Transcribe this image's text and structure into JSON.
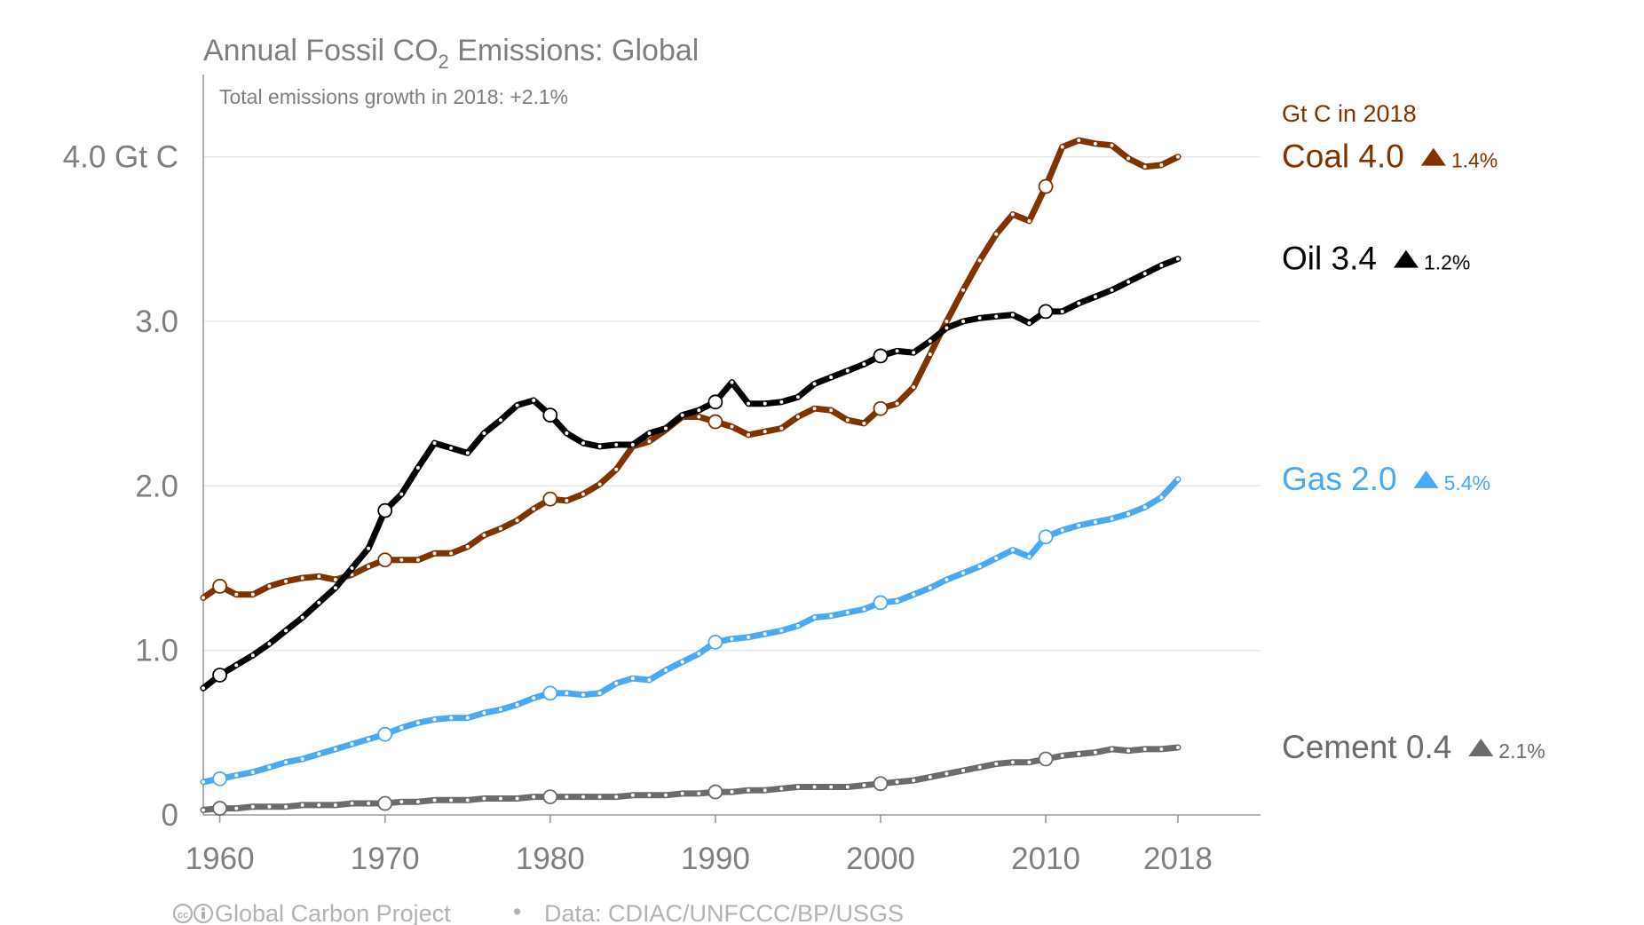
{
  "title": {
    "main": "Annual Fossil CO",
    "sub": "2",
    "rest": " Emissions: Global"
  },
  "subtitle": "Total emissions growth in 2018: +2.1%",
  "legend_heading": "Gt C in 2018",
  "footer": {
    "cc_icon": "creative-commons-icon",
    "source_org": "Global Carbon Project",
    "bullet": "•",
    "data_credit": "Data: CDIAC/UNFCCC/BP/USGS"
  },
  "chart_data": {
    "type": "line",
    "title": "Annual Fossil CO2 Emissions: Global",
    "subtitle": "Total emissions growth in 2018: +2.1%",
    "xlabel": "",
    "ylabel": "",
    "xlim": [
      1959,
      2023
    ],
    "ylim": [
      0,
      4.5
    ],
    "x_ticks": [
      {
        "value": 1960,
        "label": "1960"
      },
      {
        "value": 1970,
        "label": "1970"
      },
      {
        "value": 1980,
        "label": "1980"
      },
      {
        "value": 1990,
        "label": "1990"
      },
      {
        "value": 2000,
        "label": "2000"
      },
      {
        "value": 2010,
        "label": "2010"
      },
      {
        "value": 2018,
        "label": "2018"
      }
    ],
    "y_ticks": [
      {
        "value": 0,
        "label": "0"
      },
      {
        "value": 1,
        "label": "1.0"
      },
      {
        "value": 2,
        "label": "2.0"
      },
      {
        "value": 3,
        "label": "3.0"
      },
      {
        "value": 4,
        "label": "4.0 Gt C"
      }
    ],
    "grid": true,
    "legend_position": "right",
    "x": [
      1959,
      1960,
      1961,
      1962,
      1963,
      1964,
      1965,
      1966,
      1967,
      1968,
      1969,
      1970,
      1971,
      1972,
      1973,
      1974,
      1975,
      1976,
      1977,
      1978,
      1979,
      1980,
      1981,
      1982,
      1983,
      1984,
      1985,
      1986,
      1987,
      1988,
      1989,
      1990,
      1991,
      1992,
      1993,
      1994,
      1995,
      1996,
      1997,
      1998,
      1999,
      2000,
      2001,
      2002,
      2003,
      2004,
      2005,
      2006,
      2007,
      2008,
      2009,
      2010,
      2011,
      2012,
      2013,
      2014,
      2015,
      2016,
      2017,
      2018
    ],
    "series": [
      {
        "name": "Coal",
        "label_value": "4.0",
        "growth": "1.4%",
        "color": "#7f3300",
        "values": [
          1.32,
          1.39,
          1.34,
          1.34,
          1.39,
          1.42,
          1.44,
          1.45,
          1.43,
          1.46,
          1.51,
          1.55,
          1.55,
          1.55,
          1.59,
          1.59,
          1.63,
          1.7,
          1.74,
          1.79,
          1.86,
          1.92,
          1.91,
          1.95,
          2.01,
          2.1,
          2.24,
          2.27,
          2.34,
          2.42,
          2.42,
          2.39,
          2.36,
          2.31,
          2.33,
          2.35,
          2.42,
          2.47,
          2.46,
          2.4,
          2.38,
          2.47,
          2.5,
          2.6,
          2.8,
          3.0,
          3.19,
          3.37,
          3.53,
          3.65,
          3.61,
          3.82,
          4.06,
          4.1,
          4.08,
          4.07,
          3.99,
          3.94,
          3.95,
          4.0
        ]
      },
      {
        "name": "Oil",
        "label_value": "3.4",
        "growth": "1.2%",
        "color": "#000000",
        "values": [
          0.77,
          0.85,
          0.91,
          0.97,
          1.04,
          1.12,
          1.2,
          1.29,
          1.38,
          1.5,
          1.62,
          1.85,
          1.95,
          2.11,
          2.26,
          2.23,
          2.2,
          2.32,
          2.4,
          2.49,
          2.52,
          2.43,
          2.32,
          2.26,
          2.24,
          2.25,
          2.25,
          2.32,
          2.35,
          2.43,
          2.46,
          2.51,
          2.63,
          2.5,
          2.5,
          2.51,
          2.54,
          2.62,
          2.66,
          2.7,
          2.74,
          2.79,
          2.82,
          2.81,
          2.88,
          2.96,
          3.0,
          3.02,
          3.03,
          3.04,
          2.99,
          3.06,
          3.06,
          3.11,
          3.15,
          3.19,
          3.24,
          3.29,
          3.34,
          3.38
        ]
      },
      {
        "name": "Gas",
        "label_value": "2.0",
        "growth": "5.4%",
        "color": "#4aa9f5",
        "values": [
          0.2,
          0.22,
          0.24,
          0.26,
          0.29,
          0.32,
          0.34,
          0.37,
          0.4,
          0.43,
          0.46,
          0.49,
          0.53,
          0.56,
          0.58,
          0.59,
          0.59,
          0.62,
          0.64,
          0.67,
          0.71,
          0.74,
          0.74,
          0.73,
          0.74,
          0.8,
          0.83,
          0.82,
          0.88,
          0.93,
          0.98,
          1.05,
          1.07,
          1.08,
          1.1,
          1.12,
          1.15,
          1.2,
          1.21,
          1.23,
          1.25,
          1.29,
          1.3,
          1.34,
          1.38,
          1.43,
          1.47,
          1.51,
          1.56,
          1.61,
          1.57,
          1.69,
          1.73,
          1.76,
          1.78,
          1.8,
          1.83,
          1.87,
          1.93,
          2.04
        ]
      },
      {
        "name": "Cement",
        "label_value": "0.4",
        "growth": "2.1%",
        "color": "#6b6b6b",
        "values": [
          0.03,
          0.04,
          0.04,
          0.05,
          0.05,
          0.05,
          0.06,
          0.06,
          0.06,
          0.07,
          0.07,
          0.07,
          0.08,
          0.08,
          0.09,
          0.09,
          0.09,
          0.1,
          0.1,
          0.1,
          0.11,
          0.11,
          0.11,
          0.11,
          0.11,
          0.11,
          0.12,
          0.12,
          0.12,
          0.13,
          0.13,
          0.14,
          0.14,
          0.15,
          0.15,
          0.16,
          0.17,
          0.17,
          0.17,
          0.17,
          0.18,
          0.19,
          0.2,
          0.21,
          0.23,
          0.25,
          0.27,
          0.29,
          0.31,
          0.32,
          0.32,
          0.34,
          0.36,
          0.37,
          0.38,
          0.4,
          0.39,
          0.4,
          0.4,
          0.41
        ]
      }
    ],
    "highlighted_years": [
      1960,
      1970,
      1980,
      1990,
      2000,
      2010
    ]
  }
}
